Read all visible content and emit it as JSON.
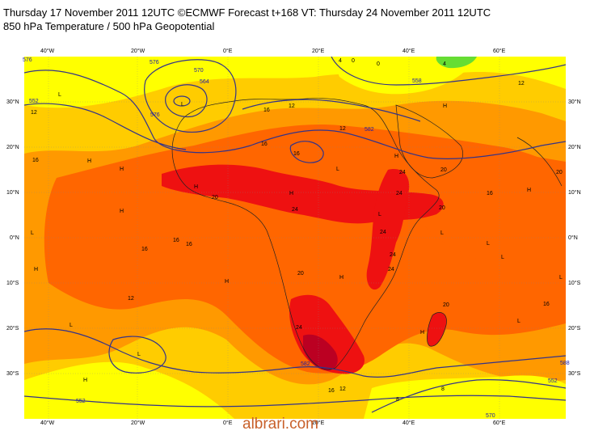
{
  "title_line1": "Thursday 17 November 2011 12UTC ©ECMWF Forecast t+168 VT: Thursday 24 November 2011 12UTC",
  "title_line2": "850 hPa Temperature / 500 hPa Geopotential",
  "watermark": "albrari.com",
  "axes": {
    "top_lon": [
      "40°W",
      "20°W",
      "0°E",
      "20°E",
      "40°E",
      "60°E"
    ],
    "bottom_lon": [
      "40°W",
      "20°W",
      "0°E",
      "20°E",
      "40°E",
      "60°E"
    ],
    "left_lat": [
      "30°N",
      "20°N",
      "10°N",
      "0°N",
      "10°S",
      "20°S",
      "30°S"
    ],
    "right_lat": [
      "30°N",
      "20°N",
      "10°N",
      "0°N",
      "10°S",
      "20°S",
      "30°S"
    ]
  },
  "colors": {
    "yellow": "#ffff00",
    "light_orange": "#ffcc00",
    "orange": "#ff9900",
    "dark_orange": "#ff6600",
    "red": "#ee1111",
    "dark_red": "#bb0022",
    "green": "#66dd33",
    "contour": "#33338a"
  },
  "temp_labels": [
    "16",
    "16",
    "16",
    "16",
    "12",
    "12",
    "12",
    "12",
    "20",
    "24",
    "24",
    "24",
    "24",
    "20",
    "20",
    "20",
    "20",
    "16",
    "24",
    "16",
    "16",
    "12",
    "8",
    "8",
    "4",
    "0",
    "0",
    "4",
    "20",
    "24",
    "16",
    "24",
    "16",
    "12",
    "16"
  ],
  "geo_labels": [
    "576",
    "552",
    "552",
    "552",
    "576",
    "570",
    "582",
    "564",
    "582",
    "570",
    "588",
    "576",
    "558"
  ],
  "pressure_marks": [
    "L",
    "L",
    "L",
    "L",
    "L",
    "L",
    "L",
    "L",
    "H",
    "H",
    "H",
    "H",
    "H",
    "H",
    "H",
    "H",
    "H",
    "H",
    "H",
    "L",
    "L",
    "L",
    "H",
    "H",
    "L"
  ]
}
